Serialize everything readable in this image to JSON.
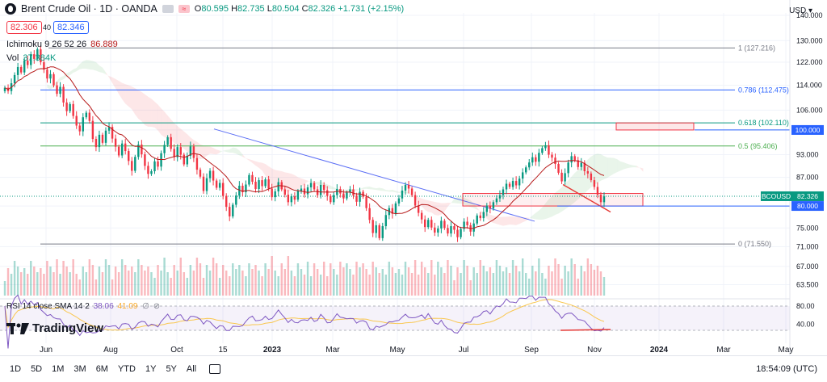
{
  "header": {
    "title": "Brent Crude Oil · 1D · OANDA",
    "ohlc": {
      "o_label": "O",
      "o": "80.595",
      "h_label": "H",
      "h": "82.735",
      "l_label": "L",
      "l": "80.504",
      "c_label": "C",
      "c": "82.326",
      "chg": "+1.731 (+2.15%)"
    },
    "sell_price": "82.306",
    "spread": "40",
    "buy_price": "82.346",
    "ichimoku_label": "Ichimoku 9 26 52 26",
    "ichimoku_value": "86.889",
    "vol_label": "Vol",
    "vol_value": "37.384K",
    "rsi_label": "RSI 14 close SMA 14 2",
    "rsi_value": "38.06",
    "rsi_value2": "41.09",
    "currency": "USD"
  },
  "brand": "TradingView",
  "timeframes": [
    "1D",
    "5D",
    "1M",
    "3M",
    "6M",
    "YTD",
    "1Y",
    "5Y",
    "All"
  ],
  "clock": "18:54:09 (UTC)",
  "colors": {
    "up": "#089981",
    "down": "#f23645",
    "fib_blue": "#2962ff",
    "ichimoku": "#b71c1c",
    "rsi": "#7e57c2",
    "grid": "#f0f3fa"
  },
  "chart_data": {
    "type": "candlestick",
    "title": "Brent Crude Oil · 1D · OANDA",
    "y_axis": {
      "scale": "log",
      "ylim": [
        61.5,
        141
      ],
      "ticks": [
        140.0,
        130.0,
        122.0,
        114.0,
        106.0,
        100.0,
        93.0,
        87.0,
        80.0,
        75.0,
        71.0,
        67.0,
        63.5
      ]
    },
    "x_ticks": [
      "Jun",
      "Aug",
      "Oct",
      "15",
      "2023",
      "Mar",
      "May",
      "Jul",
      "Sep",
      "Nov",
      "2024",
      "Mar",
      "May"
    ],
    "fib_levels": [
      {
        "label": "1 (127.216)",
        "value": 127.216
      },
      {
        "label": "0.786 (112.475)",
        "value": 112.475
      },
      {
        "label": "0.618 (102.110)",
        "value": 102.11
      },
      {
        "label": "0.5 (95.406)",
        "value": 95.406
      },
      {
        "label": "0 (71.550)",
        "value": 71.55
      }
    ],
    "price_labels": [
      {
        "label": "100.000",
        "value": 100.0
      },
      {
        "label": "BCOUSD",
        "value": 82.326,
        "price": "82.326"
      },
      {
        "label": "80.000",
        "value": 80.0
      }
    ],
    "closes": [
      113.2,
      112.1,
      114.7,
      117.5,
      120.3,
      118.4,
      122.6,
      121.0,
      124.9,
      123.2,
      126.7,
      122.0,
      119.4,
      116.3,
      117.8,
      114.0,
      111.2,
      113.5,
      108.4,
      105.7,
      107.9,
      104.2,
      101.3,
      99.6,
      103.8,
      105.2,
      102.7,
      97.4,
      95.1,
      98.6,
      96.3,
      99.8,
      100.9,
      97.5,
      95.2,
      92.8,
      96.1,
      94.0,
      91.3,
      88.7,
      92.4,
      95.8,
      93.1,
      90.0,
      87.9,
      88.6,
      91.2,
      89.8,
      93.4,
      95.7,
      97.9,
      94.6,
      92.3,
      95.1,
      93.0,
      90.4,
      92.7,
      95.3,
      92.1,
      89.0,
      87.2,
      83.6,
      86.8,
      88.7,
      86.2,
      84.4,
      85.6,
      82.4,
      79.8,
      77.6,
      80.3,
      82.5,
      84.9,
      83.3,
      85.2,
      87.6,
      85.9,
      84.1,
      86.3,
      84.8,
      86.5,
      84.2,
      82.1,
      83.5,
      85.8,
      84.0,
      82.7,
      80.9,
      82.3,
      81.5,
      83.6,
      84.2,
      82.8,
      84.5,
      85.6,
      84.0,
      82.6,
      85.1,
      83.8,
      82.4,
      80.9,
      82.6,
      84.1,
      83.0,
      81.8,
      83.2,
      84.0,
      82.5,
      81.0,
      83.4,
      82.2,
      79.5,
      76.8,
      73.9,
      75.6,
      72.8,
      75.4,
      77.9,
      79.5,
      78.2,
      80.6,
      81.8,
      83.7,
      85.1,
      84.2,
      82.6,
      80.1,
      78.4,
      76.9,
      75.2,
      76.8,
      75.1,
      74.0,
      74.9,
      76.6,
      75.0,
      73.8,
      75.4,
      74.6,
      73.0,
      74.8,
      76.4,
      75.6,
      74.2,
      76.0,
      77.8,
      77.2,
      78.6,
      80.1,
      79.4,
      80.9,
      81.8,
      82.6,
      84.0,
      85.4,
      84.6,
      86.1,
      85.0,
      86.7,
      88.3,
      89.6,
      90.9,
      92.3,
      91.1,
      93.5,
      94.8,
      95.6,
      93.0,
      92.2,
      90.5,
      88.2,
      86.0,
      88.1,
      90.9,
      92.6,
      91.5,
      89.7,
      90.8,
      88.6,
      88.0,
      86.3,
      84.6,
      82.7,
      80.9,
      82.3
    ],
    "volume_scale": "relative"
  }
}
